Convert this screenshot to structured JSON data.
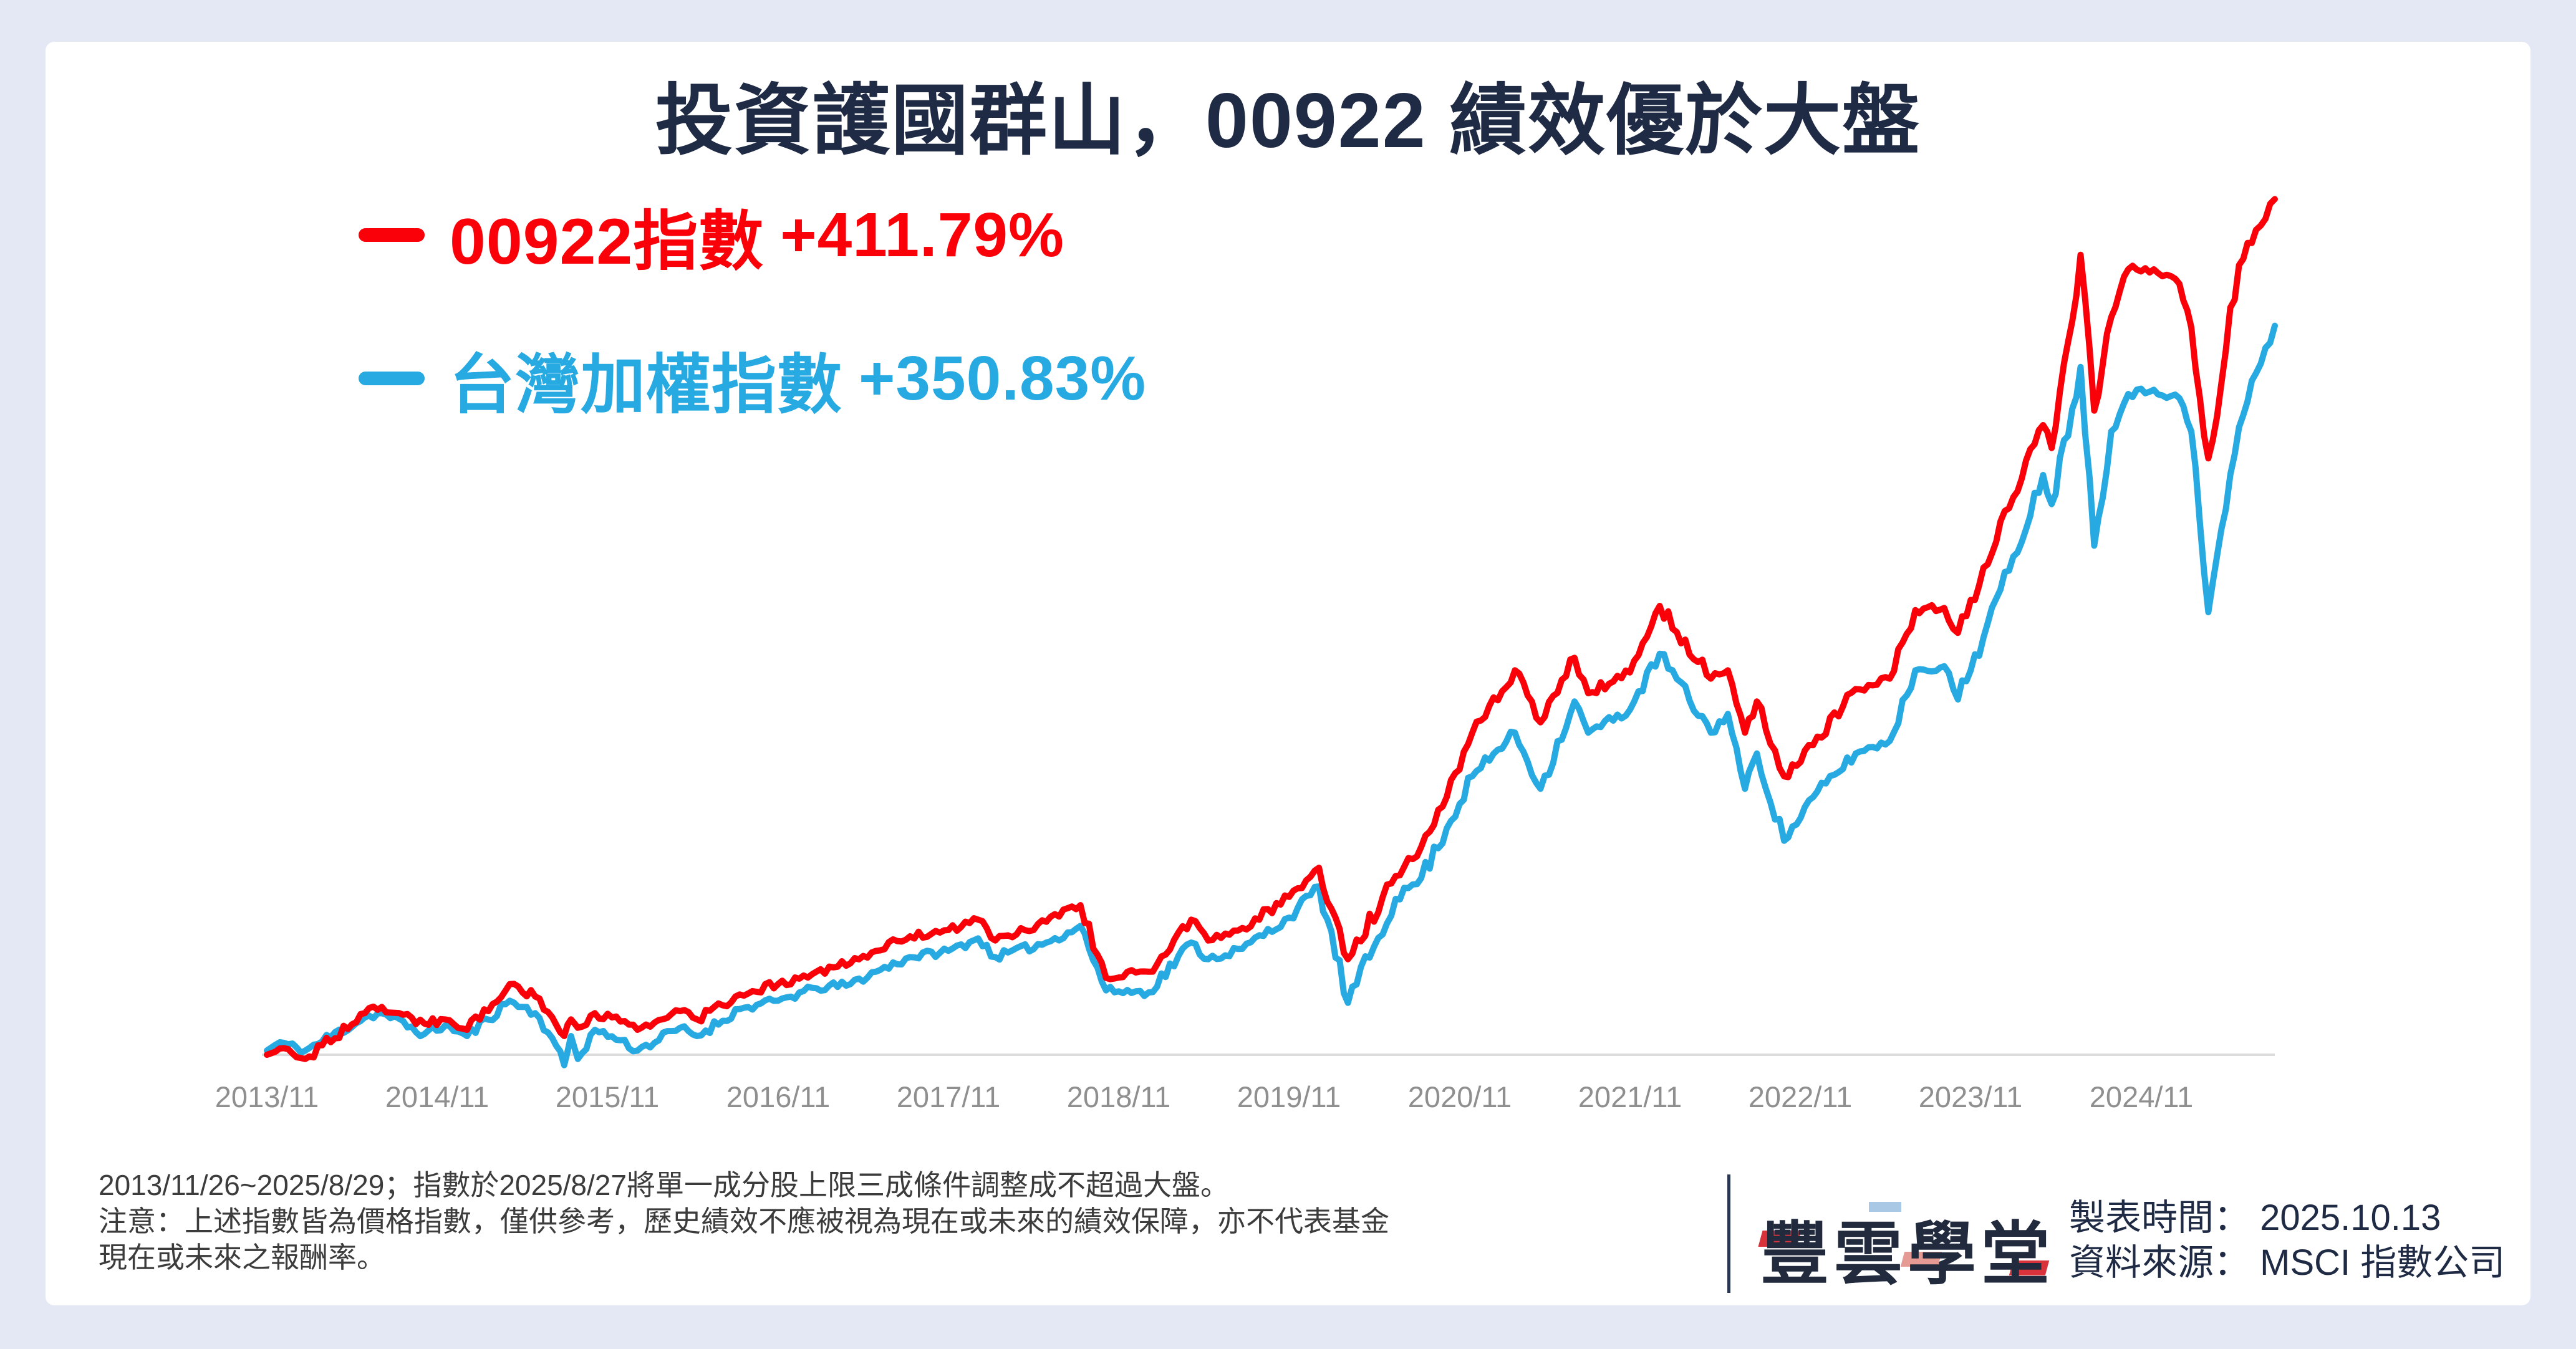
{
  "title": "投資護國群山，00922 績效優於大盤",
  "legend": [
    {
      "label": "00922指數",
      "value": "+411.79%",
      "color": "#fa0008"
    },
    {
      "label": "台灣加權指數",
      "value": "+350.83%",
      "color": "#27aae1"
    }
  ],
  "chart_data": {
    "type": "line",
    "x_ticks": [
      "2013/11",
      "2014/11",
      "2015/11",
      "2016/11",
      "2017/11",
      "2018/11",
      "2019/11",
      "2020/11",
      "2021/11",
      "2022/11",
      "2023/11",
      "2024/11"
    ],
    "x_range": [
      2013.875,
      2025.66
    ],
    "unit": "percent return",
    "y_baseline": 0,
    "grid": "off",
    "legend_position": "top-left",
    "series": [
      {
        "name": "台灣加權指數",
        "final_label": "+350.83%",
        "color": "#27aae1",
        "points": [
          [
            2013.875,
            2
          ],
          [
            2013.95,
            6
          ],
          [
            2014.1,
            2
          ],
          [
            2014.45,
            18
          ],
          [
            2014.55,
            20
          ],
          [
            2014.8,
            10
          ],
          [
            2014.92,
            14
          ],
          [
            2015.05,
            9
          ],
          [
            2015.3,
            26
          ],
          [
            2015.45,
            20
          ],
          [
            2015.55,
            8
          ],
          [
            2015.62,
            -5
          ],
          [
            2015.66,
            9
          ],
          [
            2015.7,
            -2
          ],
          [
            2015.8,
            12
          ],
          [
            2015.95,
            7
          ],
          [
            2016.05,
            2
          ],
          [
            2016.3,
            13
          ],
          [
            2016.4,
            9
          ],
          [
            2016.65,
            22
          ],
          [
            2016.875,
            26
          ],
          [
            2017.1,
            32
          ],
          [
            2017.3,
            34
          ],
          [
            2017.45,
            40
          ],
          [
            2017.65,
            47
          ],
          [
            2017.875,
            50
          ],
          [
            2018.05,
            56
          ],
          [
            2018.15,
            47
          ],
          [
            2018.45,
            54
          ],
          [
            2018.65,
            62
          ],
          [
            2018.8,
            31
          ],
          [
            2019.05,
            30
          ],
          [
            2019.3,
            54
          ],
          [
            2019.4,
            46
          ],
          [
            2019.6,
            51
          ],
          [
            2019.875,
            66
          ],
          [
            2020.05,
            81
          ],
          [
            2020.22,
            25
          ],
          [
            2020.5,
            75
          ],
          [
            2020.65,
            85
          ],
          [
            2020.95,
            134
          ],
          [
            2021.2,
            155
          ],
          [
            2021.35,
            128
          ],
          [
            2021.55,
            170
          ],
          [
            2021.63,
            155
          ],
          [
            2021.875,
            166
          ],
          [
            2022.05,
            193
          ],
          [
            2022.35,
            155
          ],
          [
            2022.45,
            164
          ],
          [
            2022.55,
            128
          ],
          [
            2022.62,
            145
          ],
          [
            2022.78,
            103
          ],
          [
            2022.95,
            124
          ],
          [
            2023.2,
            145
          ],
          [
            2023.4,
            151
          ],
          [
            2023.55,
            185
          ],
          [
            2023.72,
            187
          ],
          [
            2023.8,
            171
          ],
          [
            2024.1,
            233
          ],
          [
            2024.3,
            279
          ],
          [
            2024.35,
            265
          ],
          [
            2024.52,
            331
          ],
          [
            2024.6,
            245
          ],
          [
            2024.7,
            300
          ],
          [
            2024.8,
            318
          ],
          [
            2024.95,
            320
          ],
          [
            2025.1,
            316
          ],
          [
            2025.17,
            300
          ],
          [
            2025.27,
            213
          ],
          [
            2025.45,
            302
          ],
          [
            2025.55,
            328
          ],
          [
            2025.66,
            350.83
          ]
        ]
      },
      {
        "name": "00922指數",
        "final_label": "+411.79%",
        "color": "#fa0008",
        "points": [
          [
            2013.875,
            0
          ],
          [
            2013.95,
            3
          ],
          [
            2014.1,
            -2
          ],
          [
            2014.45,
            20
          ],
          [
            2014.55,
            23
          ],
          [
            2014.8,
            15
          ],
          [
            2014.92,
            17
          ],
          [
            2015.05,
            12
          ],
          [
            2015.3,
            34
          ],
          [
            2015.45,
            28
          ],
          [
            2015.55,
            18
          ],
          [
            2015.62,
            9
          ],
          [
            2015.66,
            17
          ],
          [
            2015.7,
            13
          ],
          [
            2015.8,
            20
          ],
          [
            2015.95,
            16
          ],
          [
            2016.05,
            12
          ],
          [
            2016.3,
            21
          ],
          [
            2016.4,
            17
          ],
          [
            2016.65,
            29
          ],
          [
            2016.875,
            34
          ],
          [
            2017.1,
            40
          ],
          [
            2017.3,
            44
          ],
          [
            2017.45,
            50
          ],
          [
            2017.65,
            57
          ],
          [
            2017.875,
            60
          ],
          [
            2018.05,
            65
          ],
          [
            2018.15,
            55
          ],
          [
            2018.45,
            64
          ],
          [
            2018.65,
            72
          ],
          [
            2018.8,
            37
          ],
          [
            2019.05,
            40
          ],
          [
            2019.3,
            65
          ],
          [
            2019.4,
            55
          ],
          [
            2019.6,
            61
          ],
          [
            2019.875,
            76
          ],
          [
            2020.05,
            90
          ],
          [
            2020.22,
            46
          ],
          [
            2020.5,
            86
          ],
          [
            2020.65,
            100
          ],
          [
            2020.95,
            155
          ],
          [
            2021.2,
            185
          ],
          [
            2021.35,
            160
          ],
          [
            2021.55,
            191
          ],
          [
            2021.63,
            174
          ],
          [
            2021.875,
            184
          ],
          [
            2022.05,
            216
          ],
          [
            2022.35,
            181
          ],
          [
            2022.45,
            185
          ],
          [
            2022.55,
            155
          ],
          [
            2022.62,
            170
          ],
          [
            2022.78,
            134
          ],
          [
            2022.95,
            149
          ],
          [
            2023.2,
            176
          ],
          [
            2023.4,
            181
          ],
          [
            2023.55,
            214
          ],
          [
            2023.72,
            215
          ],
          [
            2023.8,
            203
          ],
          [
            2024.1,
            263
          ],
          [
            2024.3,
            303
          ],
          [
            2024.35,
            292
          ],
          [
            2024.52,
            385
          ],
          [
            2024.6,
            310
          ],
          [
            2024.7,
            355
          ],
          [
            2024.8,
            378
          ],
          [
            2024.95,
            378
          ],
          [
            2025.1,
            371
          ],
          [
            2025.17,
            350
          ],
          [
            2025.27,
            287
          ],
          [
            2025.45,
            380
          ],
          [
            2025.55,
            397
          ],
          [
            2025.66,
            411.79
          ]
        ]
      }
    ]
  },
  "footnote": {
    "lines": [
      "2013/11/26~2025/8/29；指數於2025/8/27將單一成分股上限三成條件調整成不超過大盤。",
      "注意：上述指數皆為價格指數，僅供參考，歷史績效不應被視為現在或未來的績效保障，亦不代表基金",
      "現在或未來之報酬率。"
    ]
  },
  "footer": {
    "logo": "豐雲學堂",
    "meta": [
      {
        "label": "製表時間：",
        "value": "2025.10.13"
      },
      {
        "label": "資料來源：",
        "value": "MSCI 指數公司"
      }
    ]
  },
  "colors": {
    "background": "#e4e8f5",
    "card": "#ffffff",
    "title": "#1f2a44",
    "series_red": "#fa0008",
    "series_blue": "#27aae1",
    "axis_line": "#dcdcdc",
    "axis_label": "#8f8f8f",
    "footnote_text": "#3c3c3c",
    "logo_navy": "#222b3e",
    "logo_red": "#d8323a"
  }
}
